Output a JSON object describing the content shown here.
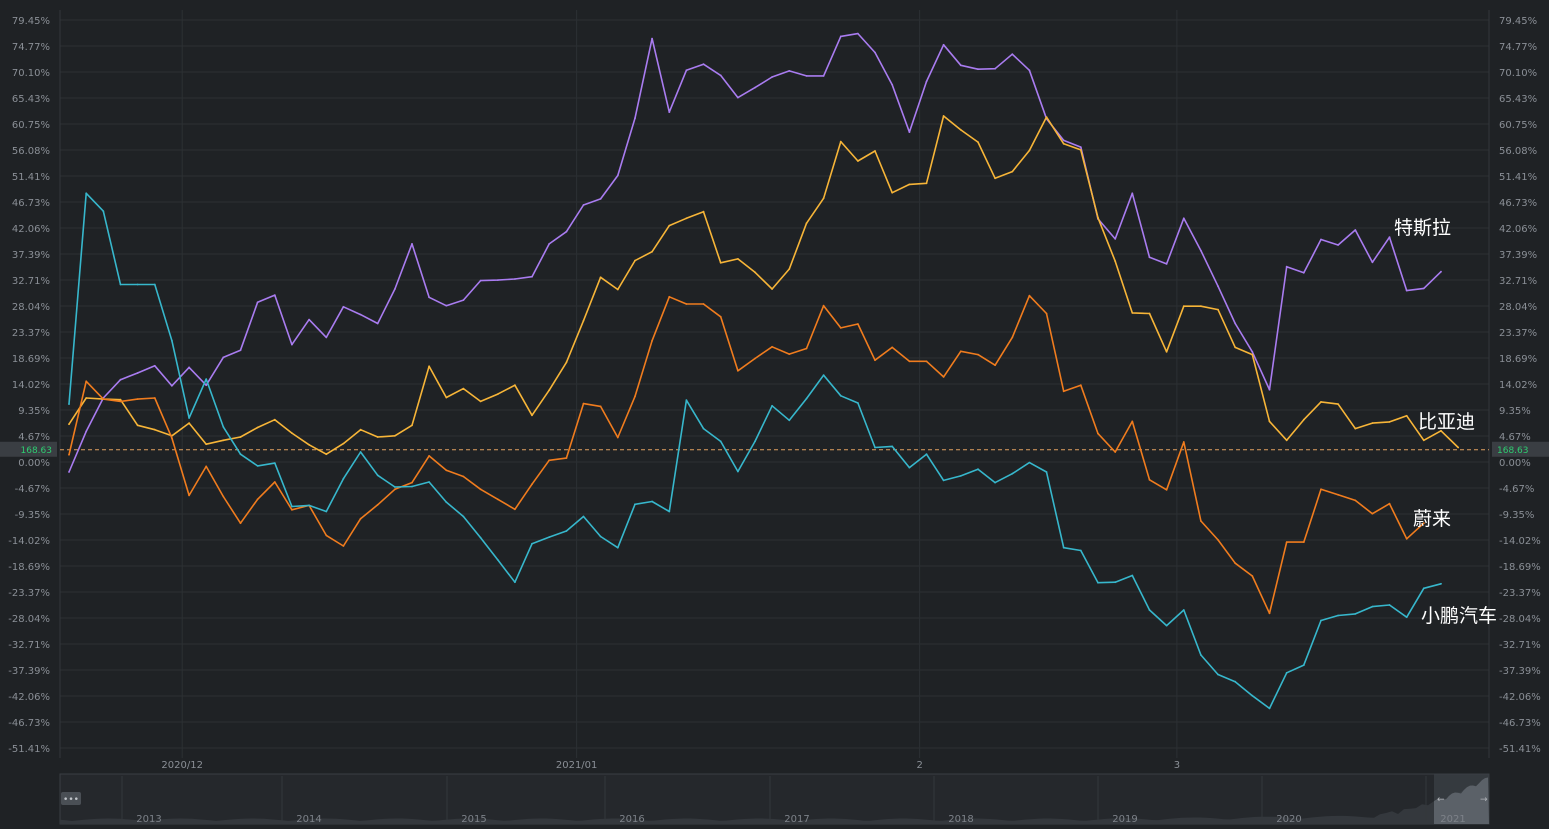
{
  "chart_data": {
    "type": "line",
    "y_unit": "%",
    "ylim": [
      -51.41,
      79.45
    ],
    "y_ticks": [
      "79.45%",
      "74.77%",
      "70.10%",
      "65.43%",
      "60.75%",
      "56.08%",
      "51.41%",
      "46.73%",
      "42.06%",
      "37.39%",
      "32.71%",
      "28.04%",
      "23.37%",
      "18.69%",
      "14.02%",
      "9.35%",
      "4.67%",
      "0.00%",
      "-4.67%",
      "-9.35%",
      "-14.02%",
      "-18.69%",
      "-23.37%",
      "-28.04%",
      "-32.71%",
      "-37.39%",
      "-42.06%",
      "-46.73%",
      "-51.41%"
    ],
    "x_ticks": [
      {
        "label": "2020/12",
        "i": 6.6
      },
      {
        "label": "2021/01",
        "i": 29.6
      },
      {
        "label": "2",
        "i": 49.6
      },
      {
        "label": "3",
        "i": 64.6
      }
    ],
    "baseline": {
      "label": "168.63",
      "value": 2.2
    },
    "grid": true,
    "legend": "end-of-line labels",
    "series": [
      {
        "name": "特斯拉",
        "color": "#a97cf0",
        "values": [
          -1.8,
          5.5,
          11.5,
          14.8,
          16.0,
          17.3,
          13.7,
          17.0,
          13.8,
          18.8,
          20.1,
          28.7,
          30.0,
          21.1,
          25.6,
          22.4,
          27.9,
          26.5,
          24.9,
          31.1,
          39.2,
          29.6,
          28.1,
          29.1,
          32.6,
          32.7,
          32.9,
          33.3,
          39.2,
          41.4,
          46.2,
          47.3,
          51.5,
          61.8,
          76.1,
          62.9,
          70.4,
          71.5,
          69.5,
          65.5,
          67.3,
          69.2,
          70.3,
          69.4,
          69.4,
          76.5,
          77.0,
          73.6,
          67.8,
          59.3,
          68.4,
          75.0,
          71.3,
          70.6,
          70.7,
          73.3,
          70.4,
          61.7,
          57.8,
          56.6,
          43.7,
          40.1,
          48.3,
          36.8,
          35.6,
          43.8,
          38.0,
          31.6,
          24.9,
          19.8,
          13.0,
          35.1,
          34.0,
          40.0,
          39.0,
          41.7,
          35.9,
          40.4,
          30.8,
          31.2,
          34.2
        ]
      },
      {
        "name": "比亚迪",
        "color": "#f7b538",
        "values": [
          6.8,
          11.5,
          11.3,
          11.2,
          6.6,
          5.8,
          4.7,
          7.0,
          3.2,
          3.9,
          4.5,
          6.2,
          7.6,
          5.2,
          3.1,
          1.4,
          3.3,
          5.8,
          4.5,
          4.7,
          6.6,
          17.2,
          11.6,
          13.2,
          10.9,
          12.2,
          13.8,
          8.4,
          12.9,
          17.9,
          25.4,
          33.2,
          31.0,
          36.2,
          37.8,
          42.5,
          43.8,
          45.0,
          35.8,
          36.5,
          34.1,
          31.1,
          34.7,
          42.9,
          47.4,
          57.6,
          54.1,
          55.9,
          48.4,
          49.9,
          50.1,
          62.2,
          59.7,
          57.5,
          51.0,
          52.2,
          56.0,
          62.0,
          57.2,
          56.1,
          43.9,
          36.1,
          26.8,
          26.7,
          19.8,
          28.0,
          28.0,
          27.4,
          20.6,
          19.3,
          7.3,
          3.9,
          7.6,
          10.8,
          10.4,
          6.0,
          7.0,
          7.2,
          8.3,
          3.9,
          5.6,
          2.6
        ]
      },
      {
        "name": "蔚来",
        "color": "#f07c1e",
        "values": [
          1.3,
          14.5,
          11.3,
          10.9,
          11.3,
          11.5,
          4.3,
          -6.0,
          -0.8,
          -6.2,
          -11.0,
          -6.7,
          -3.6,
          -8.6,
          -7.8,
          -13.2,
          -15.1,
          -10.2,
          -7.7,
          -4.9,
          -3.7,
          1.1,
          -1.5,
          -2.6,
          -4.9,
          -6.7,
          -8.5,
          -4.0,
          0.3,
          0.7,
          10.5,
          10.0,
          4.4,
          11.8,
          21.8,
          29.7,
          28.4,
          28.4,
          26.1,
          16.4,
          18.6,
          20.7,
          19.4,
          20.4,
          28.1,
          24.1,
          24.8,
          18.3,
          20.6,
          18.1,
          18.1,
          15.3,
          19.9,
          19.3,
          17.4,
          22.4,
          29.9,
          26.7,
          12.7,
          13.8,
          5.1,
          1.8,
          7.3,
          -3.2,
          -5.0,
          3.6,
          -10.6,
          -14.0,
          -18.2,
          -20.5,
          -27.2,
          -14.4,
          -14.4,
          -4.9,
          -5.9,
          -6.9,
          -9.3,
          -7.5,
          -13.8,
          -11.0
        ]
      },
      {
        "name": "小鹏汽车",
        "color": "#37b7cc",
        "values": [
          10.4,
          48.3,
          45.1,
          31.9,
          31.9,
          31.9,
          21.8,
          7.9,
          14.9,
          6.3,
          1.4,
          -0.7,
          -0.2,
          -8.0,
          -7.8,
          -8.9,
          -3.0,
          1.8,
          -2.4,
          -4.5,
          -4.4,
          -3.6,
          -7.2,
          -9.8,
          -13.6,
          -17.6,
          -21.6,
          -14.7,
          -13.5,
          -12.4,
          -9.8,
          -13.4,
          -15.4,
          -7.6,
          -7.1,
          -8.9,
          11.1,
          6.0,
          3.7,
          -1.7,
          3.7,
          10.1,
          7.5,
          11.4,
          15.6,
          11.9,
          10.6,
          2.6,
          2.8,
          -1.0,
          1.4,
          -3.3,
          -2.5,
          -1.3,
          -3.7,
          -2.1,
          -0.1,
          -1.8,
          -15.4,
          -15.9,
          -21.7,
          -21.6,
          -20.4,
          -26.6,
          -29.4,
          -26.6,
          -34.7,
          -38.2,
          -39.5,
          -42.0,
          -44.3,
          -37.9,
          -36.5,
          -28.5,
          -27.6,
          -27.3,
          -26.0,
          -25.7,
          -27.9,
          -22.7,
          -21.9
        ]
      }
    ]
  },
  "navigator": {
    "years": [
      "2013",
      "2014",
      "2015",
      "2016",
      "2017",
      "2018",
      "2019",
      "2020",
      "2021"
    ],
    "handle_symbol": "•••",
    "arrow_left": "←",
    "arrow_right": "→"
  }
}
